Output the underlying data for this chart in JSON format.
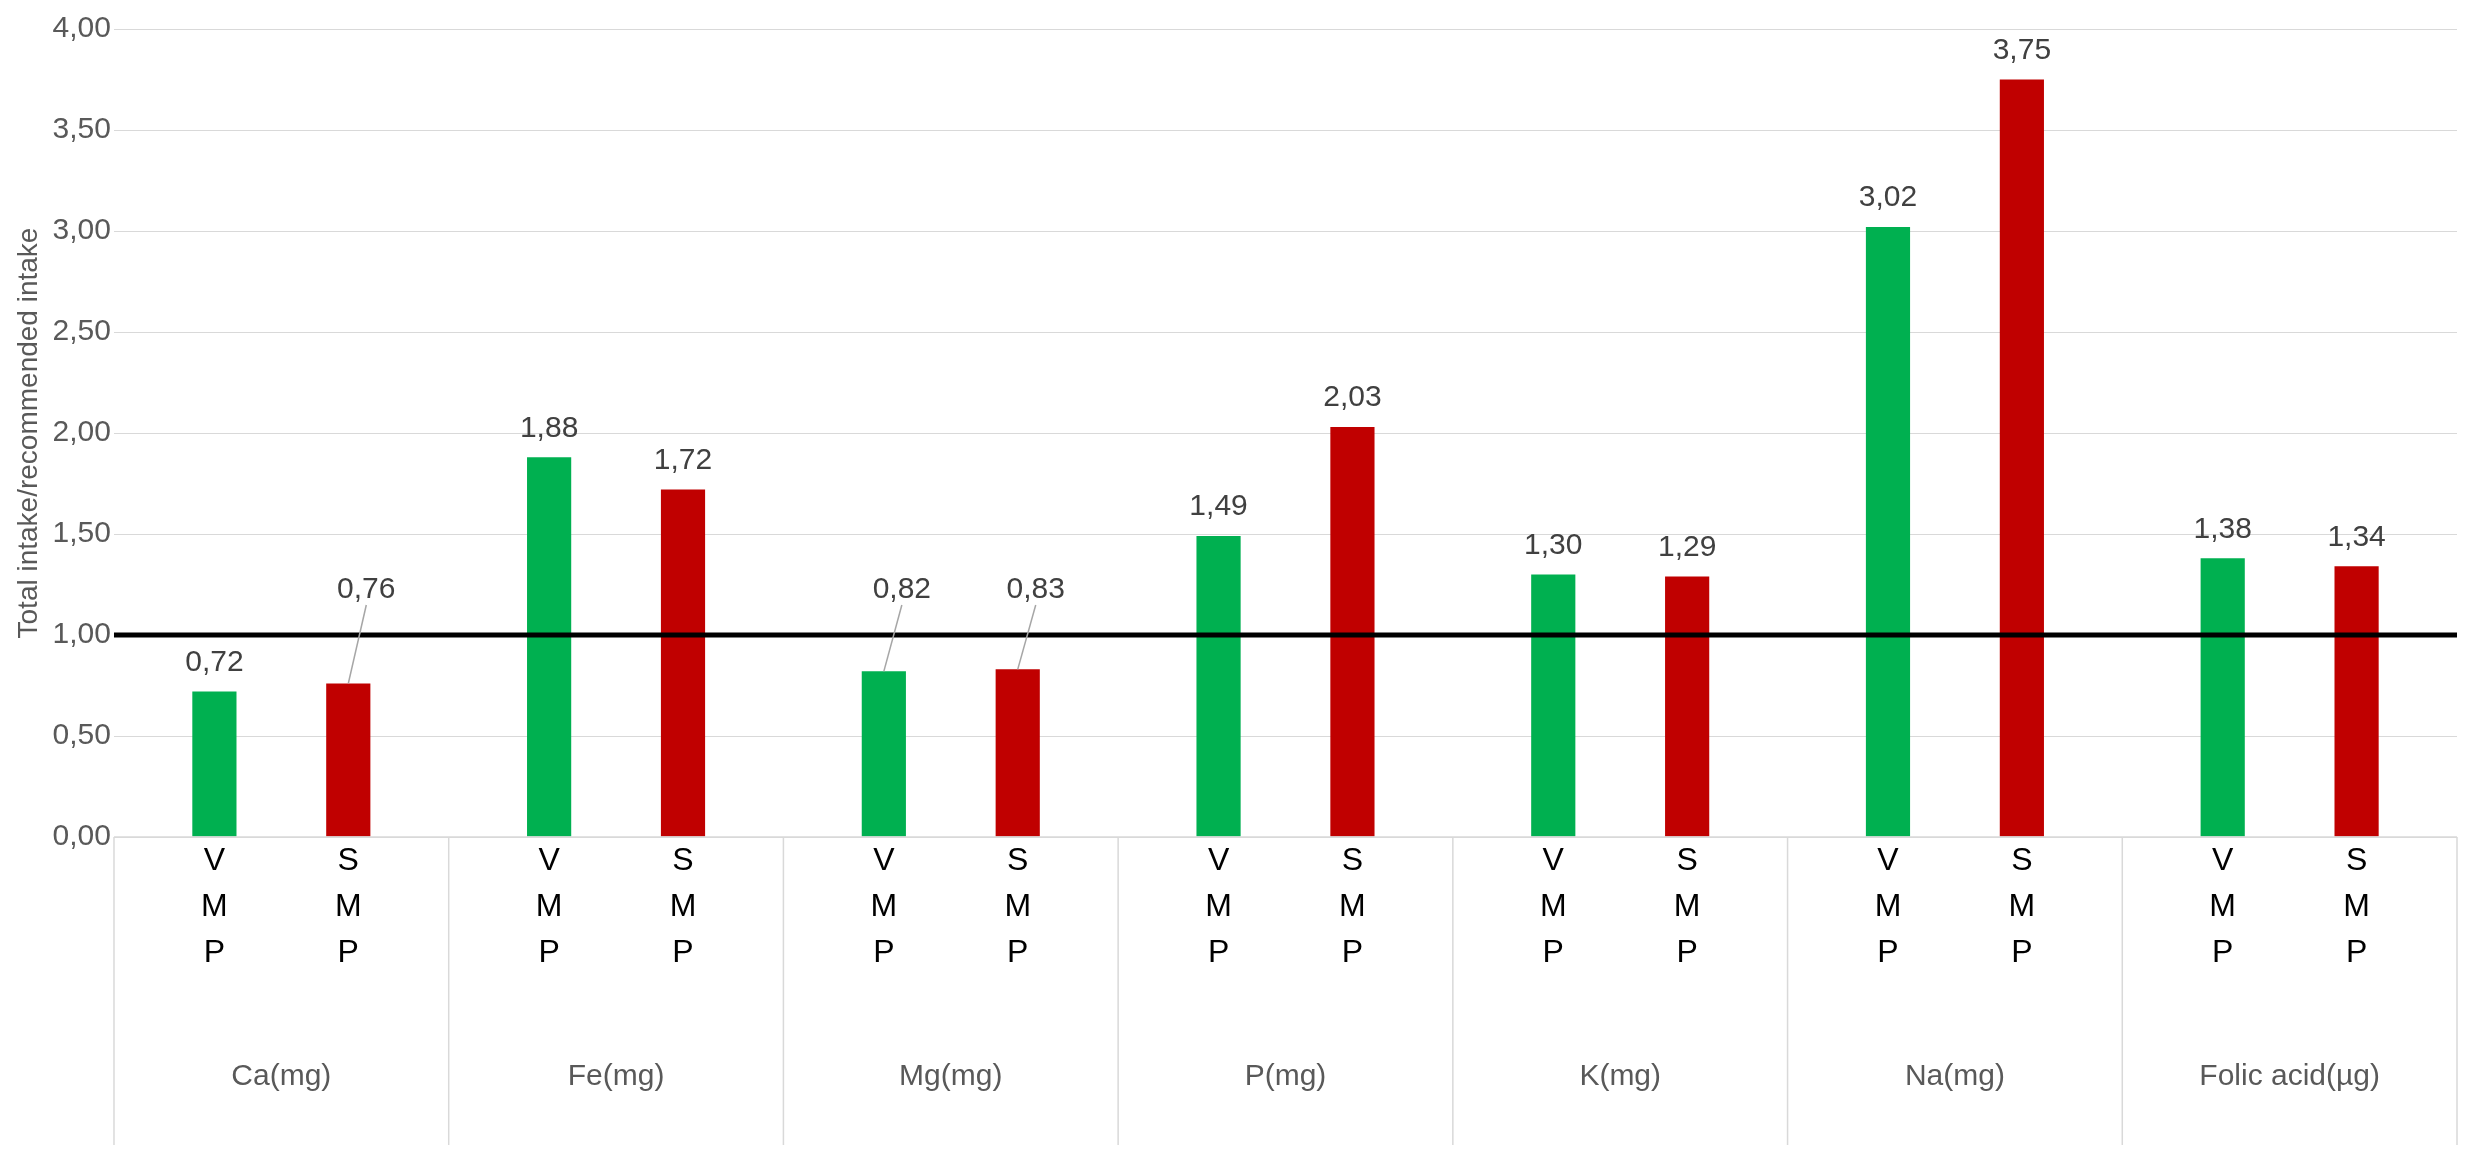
{
  "chart_data": {
    "type": "bar",
    "ylabel": "Total intake/recommended intake",
    "categories": [
      "Ca(mg)",
      "Fe(mg)",
      "Mg(mg)",
      "P(mg)",
      "K(mg)",
      "Na(mg)",
      "Folic acid(µg)"
    ],
    "series": [
      {
        "name": "VMP",
        "color": "#00b050",
        "values": [
          0.72,
          1.88,
          0.82,
          1.49,
          1.3,
          3.02,
          1.38
        ],
        "value_labels": [
          "0,72",
          "1,88",
          "0,82",
          "1,49",
          "1,30",
          "3,02",
          "1,38"
        ]
      },
      {
        "name": "SMP",
        "color": "#c00000",
        "values": [
          0.76,
          1.72,
          0.83,
          2.03,
          1.29,
          3.75,
          1.34
        ],
        "value_labels": [
          "0,76",
          "1,72",
          "0,83",
          "2,03",
          "1,29",
          "3,75",
          "1,34"
        ]
      }
    ],
    "ylim": [
      0,
      4
    ],
    "yticks": [
      {
        "value": 0,
        "label": "0,00"
      },
      {
        "value": 0.5,
        "label": "0,50"
      },
      {
        "value": 1,
        "label": "1,00"
      },
      {
        "value": 1.5,
        "label": "1,50"
      },
      {
        "value": 2,
        "label": "2,00"
      },
      {
        "value": 2.5,
        "label": "2,50"
      },
      {
        "value": 3,
        "label": "3,00"
      },
      {
        "value": 3.5,
        "label": "3,50"
      },
      {
        "value": 4,
        "label": "4,00"
      }
    ],
    "ref_lines": [
      {
        "axis": "y",
        "value": 1,
        "color": "#000000"
      }
    ],
    "grid": "y",
    "legend": false
  }
}
